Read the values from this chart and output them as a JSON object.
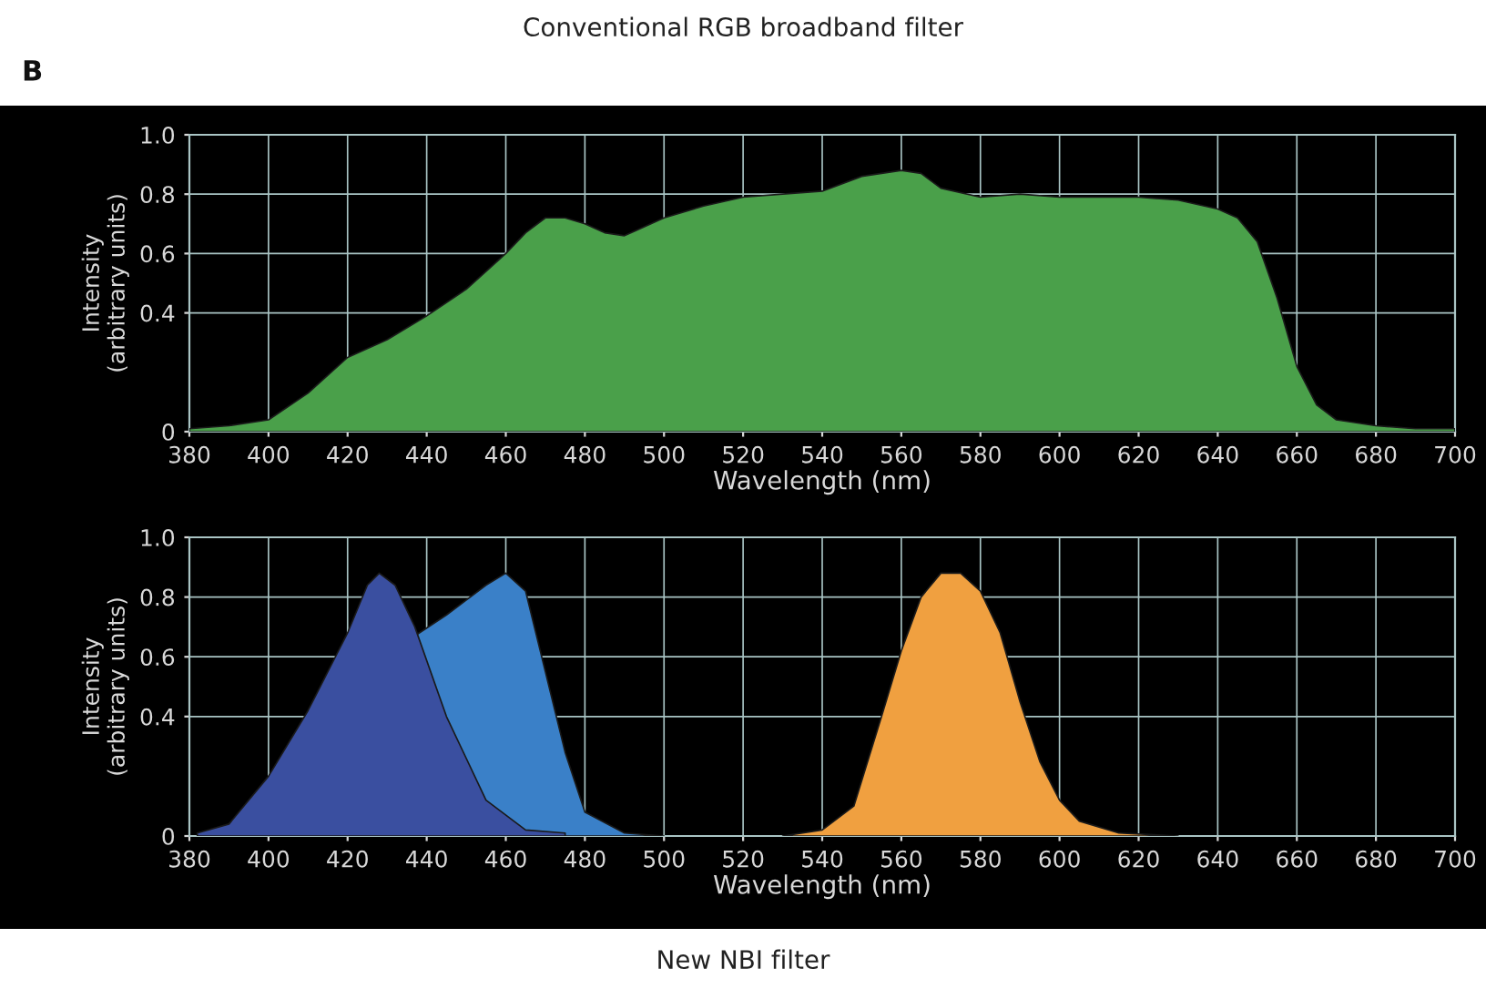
{
  "chart_data": [
    {
      "type": "area",
      "title": "Conventional RGB broadband filter",
      "annotations": [
        "B"
      ],
      "xlabel": "Wavelength (nm)",
      "ylabel": "Intensity\n(arbitrary units)",
      "xlim": [
        380,
        700
      ],
      "xticks": [
        380,
        400,
        420,
        440,
        460,
        480,
        500,
        520,
        540,
        560,
        580,
        600,
        620,
        640,
        660,
        680,
        700
      ],
      "ylim": [
        0,
        1.0
      ],
      "yticks": [
        0,
        0.4,
        0.6,
        0.8,
        {
          "value": 1.0,
          "label": "1.0"
        }
      ],
      "grid": true,
      "series": [
        {
          "color": "#4aa04a",
          "x": [
            380,
            390,
            400,
            410,
            420,
            430,
            440,
            450,
            460,
            465,
            470,
            475,
            480,
            485,
            490,
            500,
            510,
            520,
            530,
            540,
            550,
            560,
            565,
            570,
            580,
            590,
            600,
            610,
            620,
            630,
            640,
            645,
            650,
            655,
            660,
            665,
            670,
            680,
            690,
            700
          ],
          "values": [
            0.01,
            0.02,
            0.04,
            0.13,
            0.25,
            0.31,
            0.39,
            0.48,
            0.6,
            0.67,
            0.72,
            0.72,
            0.7,
            0.67,
            0.66,
            0.72,
            0.76,
            0.79,
            0.8,
            0.81,
            0.86,
            0.88,
            0.87,
            0.82,
            0.79,
            0.8,
            0.79,
            0.79,
            0.79,
            0.78,
            0.75,
            0.72,
            0.64,
            0.45,
            0.22,
            0.09,
            0.04,
            0.02,
            0.01,
            0.01
          ]
        }
      ]
    },
    {
      "type": "area",
      "annotations": [
        "New NBI filter"
      ],
      "xlabel": "Wavelength (nm)",
      "ylabel": "Intensity\n(arbitrary units)",
      "xlim": [
        380,
        700
      ],
      "xticks": [
        380,
        400,
        420,
        440,
        460,
        480,
        500,
        520,
        540,
        560,
        580,
        600,
        620,
        640,
        660,
        680,
        700
      ],
      "ylim": [
        0,
        1.0
      ],
      "yticks": [
        0,
        0.4,
        0.6,
        0.8,
        {
          "value": 1.0,
          "label": "1.0"
        }
      ],
      "grid": true,
      "series": [
        {
          "color": "#3a80c8",
          "x": [
            437,
            445,
            455,
            460,
            465,
            470,
            475,
            480,
            490,
            500
          ],
          "values": [
            0.67,
            0.74,
            0.84,
            0.88,
            0.82,
            0.55,
            0.28,
            0.08,
            0.01,
            0.0
          ]
        },
        {
          "color": "#3a4fa0",
          "x": [
            382,
            390,
            400,
            410,
            420,
            425,
            428,
            432,
            437,
            445,
            455,
            465,
            475
          ],
          "values": [
            0.01,
            0.04,
            0.2,
            0.42,
            0.68,
            0.84,
            0.88,
            0.84,
            0.7,
            0.4,
            0.12,
            0.02,
            0.01
          ]
        },
        {
          "color": "#f0a040",
          "x": [
            530,
            540,
            548,
            555,
            560,
            565,
            570,
            575,
            580,
            585,
            590,
            595,
            600,
            605,
            615,
            630
          ],
          "values": [
            0.0,
            0.02,
            0.1,
            0.4,
            0.62,
            0.8,
            0.88,
            0.88,
            0.82,
            0.68,
            0.45,
            0.25,
            0.12,
            0.05,
            0.01,
            0.0
          ]
        }
      ]
    }
  ]
}
